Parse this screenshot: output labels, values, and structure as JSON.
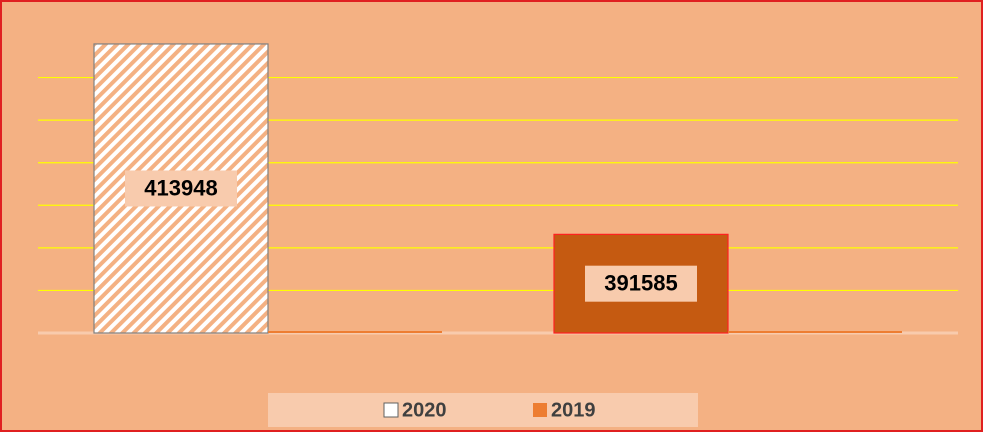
{
  "chart_data": {
    "type": "bar",
    "categories": [
      null,
      null
    ],
    "series": [
      {
        "name": "2020",
        "color": "#ffffff",
        "point_colors": [
          "#ffffff",
          "#c55a11"
        ],
        "hatch": [
          true,
          false
        ],
        "values": [
          413948,
          391585
        ]
      },
      {
        "name": "2019",
        "color": "#ed7d31",
        "values": [
          380000,
          380000
        ]
      }
    ],
    "ylim": [
      380000,
      415000
    ],
    "yticks": [
      380000,
      385000,
      390000,
      395000,
      400000,
      405000,
      410000
    ],
    "grid": true,
    "grid_color": "#ffff00",
    "legend": "bottom",
    "background": "#f4b183"
  }
}
